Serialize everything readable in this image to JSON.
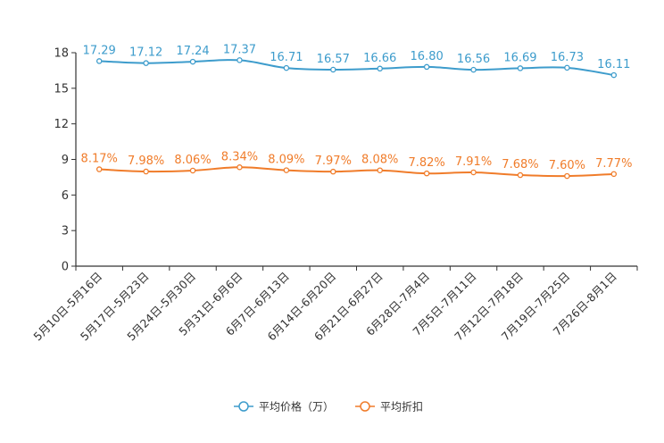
{
  "chart_data": {
    "type": "line",
    "categories": [
      "5月10日-5月16日",
      "5月17日-5月23日",
      "5月24日-5月30日",
      "5月31日-6月6日",
      "6月7日-6月13日",
      "6月14日-6月20日",
      "6月21日-6月27日",
      "6月28日-7月4日",
      "7月5日-7月11日",
      "7月12日-7月18日",
      "7月19日-7月25日",
      "7月26日-8月1日"
    ],
    "series": [
      {
        "name": "平均价格（万）",
        "color": "#3d9ccc",
        "values": [
          17.29,
          17.12,
          17.24,
          17.37,
          16.71,
          16.57,
          16.66,
          16.8,
          16.56,
          16.69,
          16.73,
          16.11
        ],
        "labels": [
          "17.29",
          "17.12",
          "17.24",
          "17.37",
          "16.71",
          "16.57",
          "16.66",
          "16.80",
          "16.56",
          "16.69",
          "16.73",
          "16.11"
        ]
      },
      {
        "name": "平均折扣",
        "color": "#f07c2a",
        "values": [
          8.17,
          7.98,
          8.06,
          8.34,
          8.09,
          7.97,
          8.08,
          7.82,
          7.91,
          7.68,
          7.6,
          7.77
        ],
        "labels": [
          "8.17%",
          "7.98%",
          "8.06%",
          "8.34%",
          "8.09%",
          "7.97%",
          "8.08%",
          "7.82%",
          "7.91%",
          "7.68%",
          "7.60%",
          "7.77%"
        ]
      }
    ],
    "y_ticks": [
      "0",
      "3",
      "6",
      "9",
      "12",
      "15",
      "18"
    ],
    "ylim": [
      0,
      18
    ],
    "grid": false,
    "legend_position": "bottom-center"
  }
}
